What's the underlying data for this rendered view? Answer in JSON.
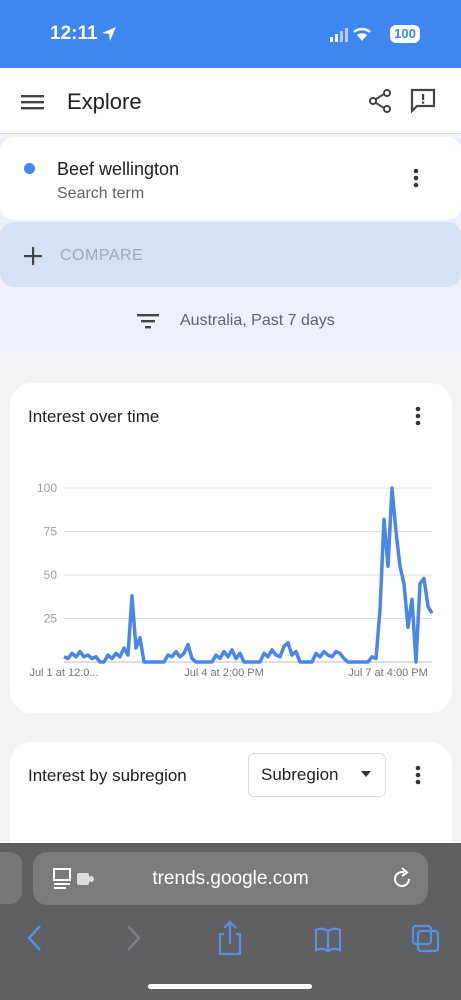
{
  "status_bar": {
    "time": "12:11",
    "battery": "100"
  },
  "header": {
    "title": "Explore"
  },
  "search_card": {
    "term": "Beef wellington",
    "subtitle": "Search term"
  },
  "compare": {
    "label": "COMPARE"
  },
  "filter": {
    "label": "Australia, Past 7 days"
  },
  "chart_data": {
    "type": "line",
    "title": "Interest over time",
    "color": "#4a86e8",
    "categories": [
      "Jul 1 at 12:0...",
      null,
      null,
      null,
      null,
      null,
      null,
      null,
      null,
      null,
      null,
      null,
      null,
      null,
      null,
      null,
      null,
      null,
      null,
      null,
      null,
      null,
      null,
      null,
      null,
      null,
      null,
      null,
      null,
      null,
      null,
      null,
      null,
      null,
      null,
      null,
      null,
      null,
      null,
      null,
      "Jul 4 at 2:00 PM",
      null,
      null,
      null,
      null,
      null,
      null,
      null,
      null,
      null,
      null,
      null,
      null,
      null,
      null,
      null,
      null,
      null,
      null,
      null,
      null,
      null,
      null,
      null,
      null,
      null,
      null,
      null,
      null,
      null,
      null,
      null,
      null,
      null,
      null,
      null,
      null,
      null,
      null,
      null,
      null,
      "Jul 7 at 4:00 PM",
      null,
      null,
      null,
      null,
      null,
      null,
      null,
      null,
      null,
      null,
      null
    ],
    "values": [
      3,
      2,
      5,
      3,
      6,
      3,
      4,
      2,
      3,
      0,
      0,
      4,
      2,
      5,
      3,
      8,
      4,
      38,
      8,
      14,
      0,
      0,
      0,
      0,
      0,
      0,
      4,
      3,
      6,
      3,
      5,
      10,
      2,
      0,
      0,
      0,
      0,
      0,
      4,
      2,
      6,
      3,
      7,
      2,
      5,
      0,
      0,
      0,
      0,
      0,
      5,
      3,
      7,
      4,
      3,
      9,
      11,
      4,
      6,
      0,
      0,
      0,
      0,
      5,
      3,
      6,
      4,
      3,
      6,
      5,
      2,
      0,
      0,
      0,
      0,
      0,
      0,
      3,
      2,
      30,
      82,
      55,
      100,
      75,
      55,
      45,
      20,
      36,
      0,
      45,
      48,
      32,
      28
    ],
    "ylim": [
      0,
      100
    ],
    "yticks": [
      25,
      50,
      75,
      100
    ],
    "grid": true
  },
  "subregion_card": {
    "title": "Interest by subregion",
    "dropdown": "Subregion"
  },
  "browser": {
    "url": "trends.google.com"
  }
}
